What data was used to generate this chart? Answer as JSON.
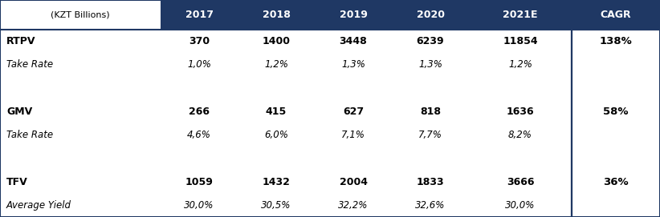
{
  "header_bg_color": "#1F3864",
  "header_text_color": "#FFFFFF",
  "body_bg_color": "#FFFFFF",
  "border_color": "#1F3864",
  "text_color": "#000000",
  "col_header": "(KZT Billions)",
  "columns": [
    "2017",
    "2018",
    "2019",
    "2020",
    "2021E",
    "CAGR"
  ],
  "rows": [
    {
      "label": "RTPV",
      "bold": true,
      "italic": false,
      "values": [
        "370",
        "1400",
        "3448",
        "6239",
        "11854"
      ],
      "cagr": "138%"
    },
    {
      "label": "Take Rate",
      "bold": false,
      "italic": true,
      "values": [
        "1,0%",
        "1,2%",
        "1,3%",
        "1,3%",
        "1,2%"
      ],
      "cagr": ""
    },
    {
      "label": "",
      "bold": false,
      "italic": false,
      "values": [
        "",
        "",
        "",
        "",
        ""
      ],
      "cagr": ""
    },
    {
      "label": "GMV",
      "bold": true,
      "italic": false,
      "values": [
        "266",
        "415",
        "627",
        "818",
        "1636"
      ],
      "cagr": "58%"
    },
    {
      "label": "Take Rate",
      "bold": false,
      "italic": true,
      "values": [
        "4,6%",
        "6,0%",
        "7,1%",
        "7,7%",
        "8,2%"
      ],
      "cagr": ""
    },
    {
      "label": "",
      "bold": false,
      "italic": false,
      "values": [
        "",
        "",
        "",
        "",
        ""
      ],
      "cagr": ""
    },
    {
      "label": "TFV",
      "bold": true,
      "italic": false,
      "values": [
        "1059",
        "1432",
        "2004",
        "1833",
        "3666"
      ],
      "cagr": "36%"
    },
    {
      "label": "Average Yield",
      "bold": false,
      "italic": true,
      "values": [
        "30,0%",
        "30,5%",
        "32,2%",
        "32,6%",
        "30,0%"
      ],
      "cagr": ""
    }
  ],
  "fig_width": 8.22,
  "fig_height": 2.71,
  "dpi": 100
}
